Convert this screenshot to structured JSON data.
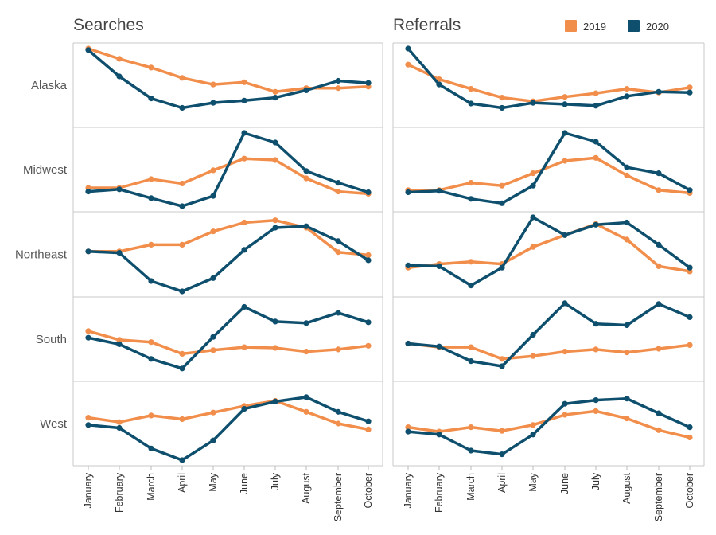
{
  "chart_data": {
    "type": "line",
    "columns": [
      "Searches",
      "Referrals"
    ],
    "rows": [
      "Alaska",
      "Midwest",
      "Northeast",
      "South",
      "West"
    ],
    "categories": [
      "January",
      "February",
      "March",
      "April",
      "May",
      "June",
      "July",
      "August",
      "September",
      "October"
    ],
    "legend": {
      "placement": "top-right",
      "items": [
        {
          "name": "2019",
          "color": "#f28e4b"
        },
        {
          "name": "2020",
          "color": "#0e4f6e"
        }
      ]
    },
    "scale": "independent per cell, relative index 0-1",
    "panels": [
      {
        "column": "Searches",
        "row": "Alaska",
        "series": [
          {
            "name": "2019",
            "values": [
              1.0,
              0.86,
              0.74,
              0.6,
              0.51,
              0.54,
              0.41,
              0.46,
              0.46,
              0.48
            ]
          },
          {
            "name": "2020",
            "values": [
              0.98,
              0.62,
              0.32,
              0.19,
              0.26,
              0.29,
              0.33,
              0.43,
              0.56,
              0.53
            ]
          }
        ]
      },
      {
        "column": "Referrals",
        "row": "Alaska",
        "series": [
          {
            "name": "2019",
            "values": [
              0.78,
              0.58,
              0.45,
              0.33,
              0.28,
              0.34,
              0.39,
              0.45,
              0.4,
              0.47
            ]
          },
          {
            "name": "2020",
            "values": [
              1.0,
              0.51,
              0.25,
              0.19,
              0.26,
              0.24,
              0.22,
              0.35,
              0.41,
              0.4
            ]
          }
        ]
      },
      {
        "column": "Searches",
        "row": "Midwest",
        "series": [
          {
            "name": "2019",
            "values": [
              0.25,
              0.25,
              0.37,
              0.31,
              0.49,
              0.65,
              0.63,
              0.38,
              0.2,
              0.17
            ]
          },
          {
            "name": "2020",
            "values": [
              0.2,
              0.23,
              0.11,
              0.0,
              0.14,
              1.0,
              0.87,
              0.48,
              0.32,
              0.19
            ]
          }
        ]
      },
      {
        "column": "Referrals",
        "row": "Midwest",
        "series": [
          {
            "name": "2019",
            "values": [
              0.22,
              0.22,
              0.32,
              0.28,
              0.45,
              0.62,
              0.66,
              0.42,
              0.22,
              0.18
            ]
          },
          {
            "name": "2020",
            "values": [
              0.19,
              0.21,
              0.1,
              0.04,
              0.28,
              1.0,
              0.88,
              0.53,
              0.45,
              0.22
            ]
          }
        ]
      },
      {
        "column": "Searches",
        "row": "Northeast",
        "series": [
          {
            "name": "2019",
            "values": [
              0.54,
              0.54,
              0.63,
              0.63,
              0.81,
              0.93,
              0.96,
              0.86,
              0.53,
              0.49
            ]
          },
          {
            "name": "2020",
            "values": [
              0.54,
              0.52,
              0.14,
              0.0,
              0.18,
              0.56,
              0.86,
              0.88,
              0.68,
              0.42
            ]
          }
        ]
      },
      {
        "column": "Referrals",
        "row": "Northeast",
        "series": [
          {
            "name": "2019",
            "values": [
              0.32,
              0.37,
              0.4,
              0.37,
              0.6,
              0.76,
              0.91,
              0.7,
              0.34,
              0.27
            ]
          },
          {
            "name": "2020",
            "values": [
              0.35,
              0.34,
              0.08,
              0.32,
              1.0,
              0.76,
              0.9,
              0.93,
              0.63,
              0.32
            ]
          }
        ]
      },
      {
        "column": "Searches",
        "row": "South",
        "series": [
          {
            "name": "2019",
            "values": [
              0.61,
              0.49,
              0.46,
              0.3,
              0.35,
              0.39,
              0.38,
              0.33,
              0.36,
              0.41
            ]
          },
          {
            "name": "2020",
            "values": [
              0.52,
              0.43,
              0.23,
              0.1,
              0.53,
              0.94,
              0.74,
              0.72,
              0.86,
              0.73
            ]
          }
        ]
      },
      {
        "column": "Referrals",
        "row": "South",
        "series": [
          {
            "name": "2019",
            "values": [
              0.44,
              0.39,
              0.39,
              0.23,
              0.27,
              0.33,
              0.36,
              0.32,
              0.37,
              0.42
            ]
          },
          {
            "name": "2020",
            "values": [
              0.44,
              0.4,
              0.2,
              0.13,
              0.56,
              0.99,
              0.71,
              0.69,
              0.98,
              0.8
            ]
          }
        ]
      },
      {
        "column": "Searches",
        "row": "West",
        "series": [
          {
            "name": "2019",
            "values": [
              0.58,
              0.52,
              0.61,
              0.56,
              0.65,
              0.74,
              0.81,
              0.66,
              0.5,
              0.42
            ]
          },
          {
            "name": "2020",
            "values": [
              0.48,
              0.44,
              0.16,
              0.0,
              0.27,
              0.7,
              0.8,
              0.86,
              0.66,
              0.53
            ]
          }
        ]
      },
      {
        "column": "Referrals",
        "row": "West",
        "series": [
          {
            "name": "2019",
            "values": [
              0.45,
              0.39,
              0.45,
              0.4,
              0.48,
              0.62,
              0.67,
              0.57,
              0.41,
              0.31
            ]
          },
          {
            "name": "2020",
            "values": [
              0.39,
              0.35,
              0.13,
              0.08,
              0.35,
              0.77,
              0.82,
              0.84,
              0.64,
              0.45
            ]
          }
        ]
      }
    ]
  }
}
